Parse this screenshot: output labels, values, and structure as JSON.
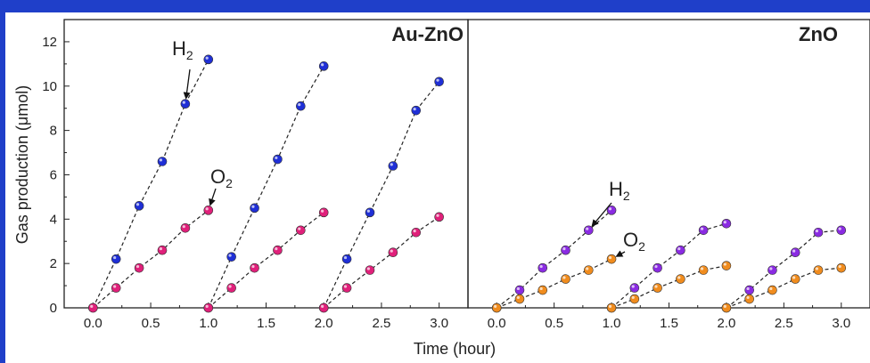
{
  "figure": {
    "frame_color": "#1f3fc9",
    "xlabel": "Time (hour)",
    "ylabel": "Gas production (μmol)"
  },
  "chart_data": [
    {
      "type": "scatter",
      "title": "Au-ZnO",
      "xlabel": "Time (hour)",
      "ylabel": "Gas production (μmol)",
      "xlim": [
        -0.25,
        3.25
      ],
      "ylim": [
        0,
        13
      ],
      "xticks": [
        "0.0",
        "0.5",
        "1.0",
        "1.5",
        "2.0",
        "2.5",
        "3.0"
      ],
      "yticks": [
        "0",
        "2",
        "4",
        "6",
        "8",
        "10",
        "12"
      ],
      "grid": false,
      "annotations": [
        {
          "text": "H",
          "sub": "2",
          "series": "H2"
        },
        {
          "text": "O",
          "sub": "2",
          "series": "O2"
        }
      ],
      "series": [
        {
          "name": "H2",
          "color": "#1f2fd6",
          "segments": [
            {
              "x": [
                0.0,
                0.2,
                0.4,
                0.6,
                0.8,
                1.0
              ],
              "y": [
                0,
                2.2,
                4.6,
                6.6,
                9.2,
                11.2
              ]
            },
            {
              "x": [
                1.0,
                1.2,
                1.4,
                1.6,
                1.8,
                2.0
              ],
              "y": [
                0,
                2.3,
                4.5,
                6.7,
                9.1,
                10.9
              ]
            },
            {
              "x": [
                2.0,
                2.2,
                2.4,
                2.6,
                2.8,
                3.0
              ],
              "y": [
                0,
                2.2,
                4.3,
                6.4,
                8.9,
                10.2
              ]
            }
          ]
        },
        {
          "name": "O2",
          "color": "#e0207a",
          "segments": [
            {
              "x": [
                0.0,
                0.2,
                0.4,
                0.6,
                0.8,
                1.0
              ],
              "y": [
                0,
                0.9,
                1.8,
                2.6,
                3.6,
                4.4
              ]
            },
            {
              "x": [
                1.0,
                1.2,
                1.4,
                1.6,
                1.8,
                2.0
              ],
              "y": [
                0,
                0.9,
                1.8,
                2.6,
                3.5,
                4.3
              ]
            },
            {
              "x": [
                2.0,
                2.2,
                2.4,
                2.6,
                2.8,
                3.0
              ],
              "y": [
                0,
                0.9,
                1.7,
                2.5,
                3.4,
                4.1
              ]
            }
          ]
        }
      ]
    },
    {
      "type": "scatter",
      "title": "ZnO",
      "xlabel": "Time (hour)",
      "xlim": [
        -0.25,
        3.25
      ],
      "ylim": [
        0,
        13
      ],
      "xticks": [
        "0.0",
        "0.5",
        "1.0",
        "1.5",
        "2.0",
        "2.5",
        "3.0"
      ],
      "grid": false,
      "annotations": [
        {
          "text": "H",
          "sub": "2",
          "series": "H2"
        },
        {
          "text": "O",
          "sub": "2",
          "series": "O2"
        }
      ],
      "series": [
        {
          "name": "H2",
          "color": "#8a2be2",
          "segments": [
            {
              "x": [
                0.0,
                0.2,
                0.4,
                0.6,
                0.8,
                1.0
              ],
              "y": [
                0,
                0.8,
                1.8,
                2.6,
                3.5,
                4.4
              ]
            },
            {
              "x": [
                1.0,
                1.2,
                1.4,
                1.6,
                1.8,
                2.0
              ],
              "y": [
                0,
                0.9,
                1.8,
                2.6,
                3.5,
                3.8
              ]
            },
            {
              "x": [
                2.0,
                2.2,
                2.4,
                2.6,
                2.8,
                3.0
              ],
              "y": [
                0,
                0.8,
                1.7,
                2.5,
                3.4,
                3.5
              ]
            }
          ]
        },
        {
          "name": "O2",
          "color": "#f08c1e",
          "segments": [
            {
              "x": [
                0.0,
                0.2,
                0.4,
                0.6,
                0.8,
                1.0
              ],
              "y": [
                0,
                0.4,
                0.8,
                1.3,
                1.7,
                2.2
              ]
            },
            {
              "x": [
                1.0,
                1.2,
                1.4,
                1.6,
                1.8,
                2.0
              ],
              "y": [
                0,
                0.4,
                0.9,
                1.3,
                1.7,
                1.9
              ]
            },
            {
              "x": [
                2.0,
                2.2,
                2.4,
                2.6,
                2.8,
                3.0
              ],
              "y": [
                0,
                0.4,
                0.8,
                1.3,
                1.7,
                1.8
              ]
            }
          ]
        }
      ]
    }
  ]
}
